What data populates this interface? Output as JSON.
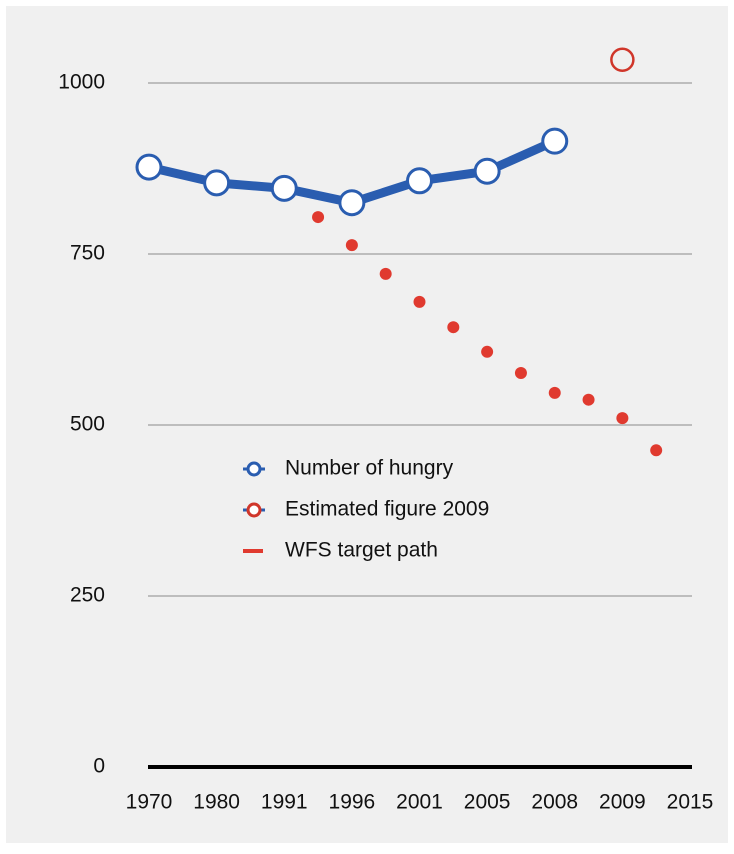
{
  "chart_data": {
    "type": "line",
    "categories": [
      "1970",
      null,
      "1980",
      null,
      "1991",
      null,
      "1996",
      null,
      "2001",
      null,
      "2005",
      null,
      "2008",
      null,
      "2009",
      null,
      "2015"
    ],
    "series": [
      {
        "name": "Number of hungry",
        "color": "#2a5db0",
        "style": "line-markers",
        "values": [
          877,
          null,
          854,
          null,
          846,
          null,
          825,
          null,
          857,
          null,
          871,
          null,
          915,
          null,
          null,
          null,
          null
        ]
      },
      {
        "name": "Estimated figure 2009",
        "color": "#d0362a",
        "style": "open-marker",
        "values": [
          null,
          null,
          null,
          null,
          null,
          null,
          null,
          null,
          null,
          null,
          null,
          null,
          null,
          null,
          1034,
          null,
          null
        ]
      },
      {
        "name": "WFS target path",
        "color": "#e03a2f",
        "style": "dots",
        "values": [
          null,
          null,
          null,
          null,
          null,
          804,
          763,
          721,
          680,
          643,
          607,
          576,
          547,
          537,
          510,
          463,
          null
        ]
      }
    ],
    "ylim": [
      0,
      1050
    ],
    "yticks": [
      0,
      250,
      500,
      750,
      1000
    ],
    "grid": true
  }
}
